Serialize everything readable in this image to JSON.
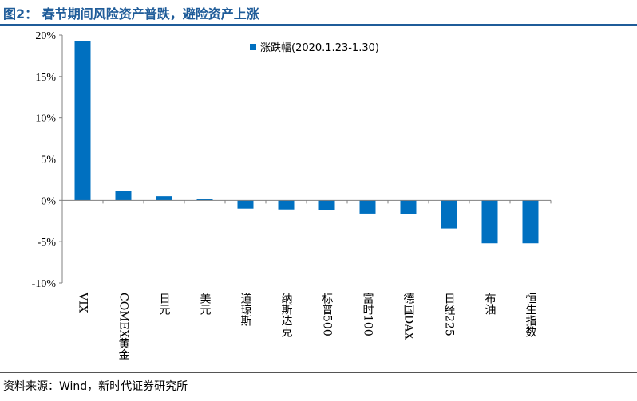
{
  "figure_title": "图2： 春节期间风险资产普跌，避险资产上涨",
  "source_note": "资料来源：Wind，新时代证券研究所",
  "colors": {
    "bar": "#0070c0",
    "title": "#1f5c99",
    "axis": "#808080",
    "text": "#000000"
  },
  "chart_data": {
    "type": "bar",
    "categories": [
      "VIX",
      "COMEX黄金",
      "日元",
      "美元",
      "道琼斯",
      "纳斯达克",
      "标普500",
      "富时100",
      "德国DAX",
      "日经225",
      "布油",
      "恒生指数"
    ],
    "series": [
      {
        "name": "涨跌幅(2020.1.23-1.30)",
        "values": [
          19.3,
          1.1,
          0.5,
          0.2,
          -1.0,
          -1.1,
          -1.2,
          -1.6,
          -1.7,
          -3.4,
          -5.2,
          -5.2
        ]
      }
    ],
    "yticks": [
      "20%",
      "15%",
      "10%",
      "5%",
      "0%",
      "-5%",
      "-10%"
    ],
    "ylim": [
      -10,
      20
    ],
    "legend": "top-right",
    "grid": false
  }
}
